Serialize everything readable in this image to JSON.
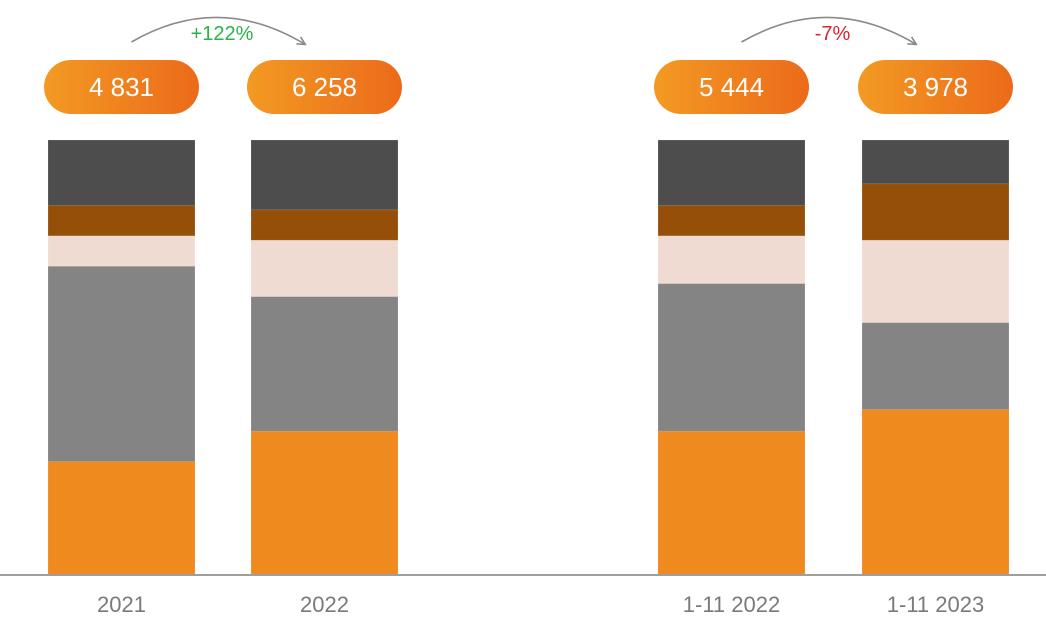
{
  "chart_data": {
    "type": "bar",
    "stacked": true,
    "normalized": true,
    "categories": [
      "2021",
      "2022",
      "1-11 2022",
      "1-11 2023"
    ],
    "totals": [
      "4 831",
      "6 258",
      "5 444",
      "3 978"
    ],
    "changes": [
      {
        "from": 0,
        "to": 1,
        "label": "+122%",
        "color": "#2bb24c"
      },
      {
        "from": 2,
        "to": 3,
        "label": "-7%",
        "color": "#e0202f"
      }
    ],
    "series": [
      {
        "color": "#ee8a1e",
        "values": [
          0.26,
          0.33,
          0.33,
          0.38
        ]
      },
      {
        "color": "#848484",
        "values": [
          0.45,
          0.31,
          0.34,
          0.2
        ]
      },
      {
        "color": "#f0dbd2",
        "values": [
          0.07,
          0.13,
          0.11,
          0.19
        ]
      },
      {
        "color": "#954f09",
        "values": [
          0.07,
          0.07,
          0.07,
          0.13
        ]
      },
      {
        "color": "#4d4d4d",
        "values": [
          0.15,
          0.16,
          0.15,
          0.1
        ]
      }
    ],
    "legend": "none",
    "grid": false
  },
  "colors": {
    "pill_start": "#f39a23",
    "pill_end": "#ec6a1a",
    "pill_text": "#ffffff",
    "axis": "#9e9e9e",
    "category_text": "#7a7a7a",
    "arrow": "#8a8a8a"
  }
}
